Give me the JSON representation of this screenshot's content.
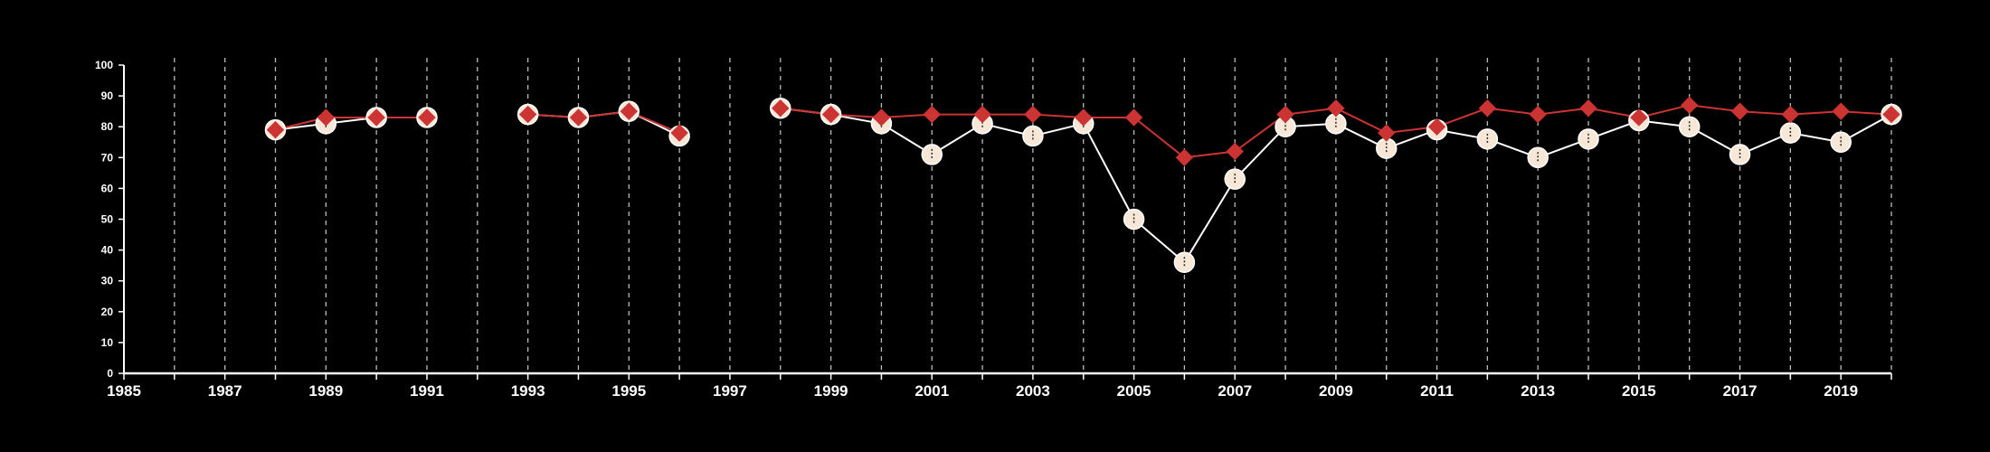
{
  "colors": {
    "background": "#000000",
    "axis": "#ffffff",
    "grid": "#bbbbbb",
    "series_white_line": "#ffffff",
    "series_white_marker_fill": "#f6e7d6",
    "series_red": "#cc3333"
  },
  "chart_data": {
    "type": "line",
    "title": "",
    "xlabel": "",
    "ylabel": "",
    "xlim": [
      1985,
      2020
    ],
    "ylim": [
      0,
      100
    ],
    "grid": "vertical dashed lines at every year",
    "legend": "none",
    "y_ticks": [
      0,
      10,
      20,
      30,
      40,
      50,
      60,
      70,
      80,
      90,
      100
    ],
    "x_tick_labels": [
      1985,
      1987,
      1989,
      1991,
      1993,
      1995,
      1997,
      1999,
      2001,
      2003,
      2005,
      2007,
      2009,
      2011,
      2013,
      2015,
      2017,
      2019
    ],
    "x_ticks": [
      1985,
      1986,
      1987,
      1988,
      1989,
      1990,
      1991,
      1992,
      1993,
      1994,
      1995,
      1996,
      1997,
      1998,
      1999,
      2000,
      2001,
      2002,
      2003,
      2004,
      2005,
      2006,
      2007,
      2008,
      2009,
      2010,
      2011,
      2012,
      2013,
      2014,
      2015,
      2016,
      2017,
      2018,
      2019,
      2020
    ],
    "series": [
      {
        "marker": "circle",
        "x": [
          1988,
          1989,
          1990,
          1991,
          1992,
          1993,
          1994,
          1995,
          1996,
          1997,
          1998,
          1999,
          2000,
          2001,
          2002,
          2003,
          2004,
          2005,
          2006,
          2007,
          2008,
          2009,
          2010,
          2011,
          2012,
          2013,
          2014,
          2015,
          2016,
          2017,
          2018,
          2019,
          2020
        ],
        "y": [
          79,
          81,
          83,
          83,
          null,
          84,
          83,
          85,
          77,
          null,
          86,
          84,
          81,
          71,
          81,
          77,
          81,
          50,
          36,
          63,
          80,
          81,
          73,
          79,
          76,
          70,
          76,
          82,
          80,
          71,
          78,
          75,
          84
        ]
      },
      {
        "marker": "diamond",
        "x": [
          1988,
          1989,
          1990,
          1991,
          1992,
          1993,
          1994,
          1995,
          1996,
          1997,
          1998,
          1999,
          2000,
          2001,
          2002,
          2003,
          2004,
          2005,
          2006,
          2007,
          2008,
          2009,
          2010,
          2011,
          2012,
          2013,
          2014,
          2015,
          2016,
          2017,
          2018,
          2019,
          2020
        ],
        "y": [
          79,
          83,
          83,
          83,
          null,
          84,
          83,
          85,
          78,
          null,
          86,
          84,
          83,
          84,
          84,
          84,
          83,
          83,
          70,
          72,
          84,
          86,
          78,
          80,
          86,
          84,
          86,
          83,
          87,
          85,
          84,
          85,
          84
        ]
      }
    ]
  }
}
